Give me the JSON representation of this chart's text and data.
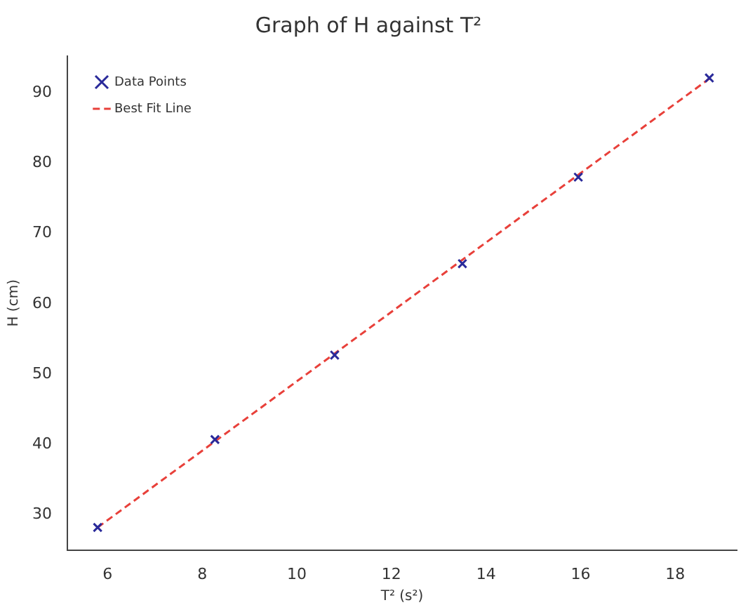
{
  "chart_data": {
    "type": "scatter",
    "title": "Graph of H against T²",
    "xlabel": "T² (s²)",
    "ylabel": "H (cm)",
    "series": [
      {
        "name": "Data Points",
        "type": "scatter",
        "color": "#2a2a9a",
        "marker": "cross",
        "x": [
          5.79,
          8.27,
          10.8,
          13.5,
          15.95,
          18.72
        ],
        "values": [
          28.2,
          40.7,
          52.7,
          65.7,
          78.0,
          92.1
        ]
      },
      {
        "name": "Best Fit Line",
        "type": "line",
        "color": "#e8403a",
        "line_style": "dashed",
        "marker": "none",
        "x": [
          5.79,
          18.72
        ],
        "values": [
          28.2,
          92.0
        ]
      }
    ],
    "xlim": [
      5.15,
      19.3
    ],
    "xticks": [
      6,
      8,
      10,
      12,
      14,
      16,
      18
    ],
    "ylim": [
      25,
      95.2
    ],
    "yticks": [
      30,
      40,
      50,
      60,
      70,
      80,
      90
    ],
    "grid": false,
    "legend": "top left"
  }
}
